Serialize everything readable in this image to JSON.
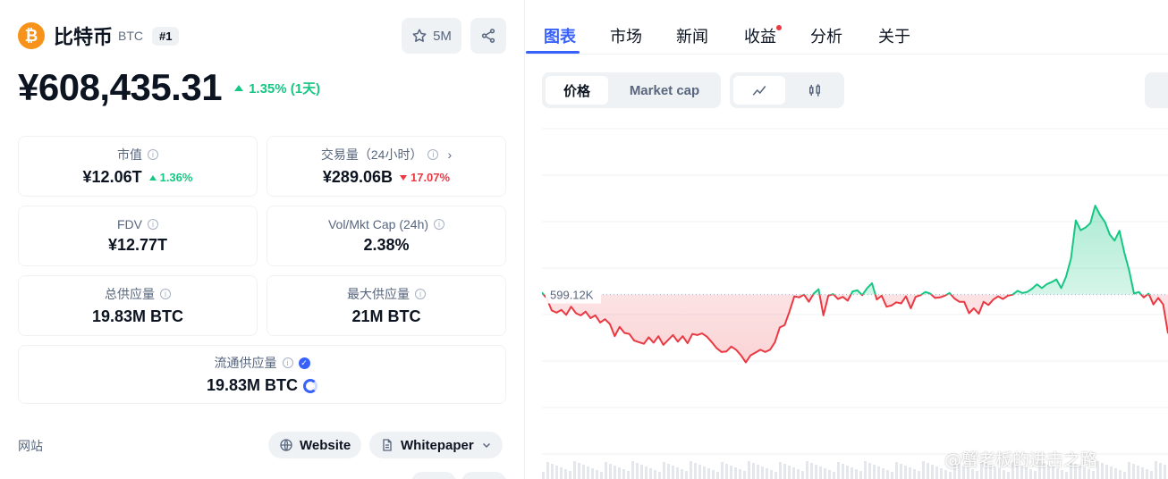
{
  "coin": {
    "name": "比特币",
    "symbol": "BTC",
    "rank": "#1",
    "logo_glyph": "₿",
    "watchlist_label": "5M",
    "price": "¥608,435.31",
    "price_change": "1.35% (1天)"
  },
  "stats": {
    "market_cap": {
      "label": "市值",
      "value": "¥12.06T",
      "change": "1.36%",
      "direction": "up"
    },
    "volume": {
      "label": "交易量（24小时）",
      "value": "¥289.06B",
      "change": "17.07%",
      "direction": "down"
    },
    "fdv": {
      "label": "FDV",
      "value": "¥12.77T"
    },
    "vol_mkt_cap": {
      "label": "Vol/Mkt Cap (24h)",
      "value": "2.38%"
    },
    "total_supply": {
      "label": "总供应量",
      "value": "19.83M BTC"
    },
    "max_supply": {
      "label": "最大供应量",
      "value": "21M BTC"
    },
    "circulating_supply": {
      "label": "流通供应量",
      "value": "19.83M BTC"
    }
  },
  "links": {
    "label": "网站",
    "website": "Website",
    "whitepaper": "Whitepaper"
  },
  "tabs": [
    "图表",
    "市场",
    "新闻",
    "收益",
    "分析",
    "关于"
  ],
  "chart_controls": {
    "price": "价格",
    "market_cap": "Market cap"
  },
  "watermark": "@蟹老板的进击之路",
  "colors": {
    "up": "#16c784",
    "down": "#ea3943",
    "accent": "#3861fb",
    "bitcoin": "#f7931a"
  },
  "chart_data": {
    "type": "area",
    "baseline_label": "599.12K",
    "baseline": 599.12,
    "series": [
      {
        "values": [
          599.5,
          598.4,
          596.2,
          595.8,
          596.3,
          595.4,
          596.9,
          595.7,
          595.3,
          596.0,
          594.8,
          595.3,
          594.0,
          594.6,
          593.7,
          591.5,
          593.2,
          592.1,
          591.9,
          590.7,
          590.4,
          590.1,
          591.3,
          590.3,
          591.5,
          589.9,
          590.8,
          591.7,
          590.5,
          591.5,
          590.2,
          591.9,
          591.7,
          592.0,
          591.4,
          590.4,
          589.3,
          588.6,
          588.7,
          589.6,
          589.0,
          588.0,
          586.7,
          588.0,
          588.5,
          589.0,
          588.6,
          589.0,
          590.4,
          593.1,
          593.5,
          596.0,
          598.8,
          598.6,
          599.1,
          597.8,
          599.3,
          600.1,
          595.3,
          598.9,
          599.2,
          598.3,
          598.7,
          598.0,
          599.7,
          599.9,
          599.0,
          600.3,
          601.2,
          598.2,
          598.9,
          596.9,
          597.1,
          597.7,
          597.5,
          598.8,
          596.6,
          598.7,
          599.0,
          599.6,
          599.3,
          598.5,
          598.6,
          598.9,
          599.4,
          598.4,
          597.8,
          597.8,
          595.7,
          596.6,
          595.6,
          597.8,
          597.2,
          598.2,
          598.8,
          598.3,
          598.9,
          599.1,
          599.8,
          599.4,
          599.6,
          600.2,
          601.0,
          600.3,
          601.0,
          601.4,
          601.9,
          600.3,
          602.4,
          605.7,
          612.7,
          610.9,
          611.4,
          612.2,
          615.4,
          613.7,
          612.4,
          610.1,
          609.0,
          610.8,
          606.8,
          603.5,
          599.3,
          599.6,
          598.6,
          599.3,
          597.3,
          598.5,
          597.3,
          592.0
        ]
      }
    ],
    "grid": true,
    "legend": "none"
  }
}
